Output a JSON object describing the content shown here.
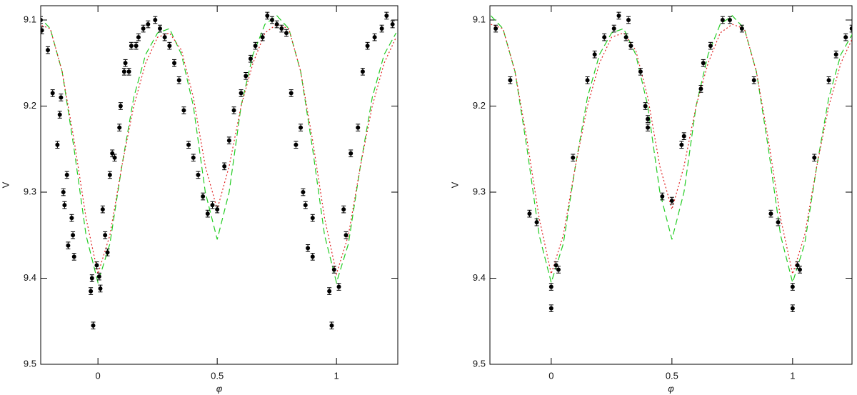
{
  "chart_data": [
    {
      "type": "scatter",
      "xlabel": "φ",
      "ylabel": "V",
      "xlim": [
        -0.24,
        1.257
      ],
      "ylim": [
        9.0834,
        9.5
      ],
      "y_inverted": true,
      "xticks": [
        0,
        0.5,
        1
      ],
      "yticks": [
        9.1,
        9.2,
        9.3,
        9.4,
        9.5
      ],
      "yerr": 0.004,
      "point_color": "#000000",
      "points": {
        "x": [
          -0.24,
          -0.235,
          -0.21,
          -0.19,
          -0.17,
          -0.16,
          -0.155,
          -0.145,
          -0.14,
          -0.13,
          -0.125,
          -0.11,
          -0.105,
          -0.1,
          -0.03,
          -0.025,
          -0.02,
          -0.005,
          0.005,
          0.01,
          0.02,
          0.03,
          0.04,
          0.05,
          0.06,
          0.07,
          0.09,
          0.095,
          0.11,
          0.115,
          0.13,
          0.14,
          0.16,
          0.17,
          0.19,
          0.21,
          0.24,
          0.26,
          0.28,
          0.3,
          0.32,
          0.34,
          0.36,
          0.38,
          0.4,
          0.42,
          0.44,
          0.46,
          0.48,
          0.5,
          0.53,
          0.55,
          0.57,
          0.6,
          0.62,
          0.64,
          0.66,
          0.69,
          0.71,
          0.73,
          0.75,
          0.77,
          0.79,
          0.81,
          0.83,
          0.85,
          0.86,
          0.87,
          0.88,
          0.9,
          0.9,
          0.97,
          0.98,
          0.99,
          1.01,
          1.03,
          1.04,
          1.06,
          1.09,
          1.11,
          1.13,
          1.16,
          1.19,
          1.21,
          1.235
        ],
        "y": [
          9.1,
          9.112,
          9.135,
          9.185,
          9.245,
          9.21,
          9.19,
          9.3,
          9.315,
          9.28,
          9.362,
          9.33,
          9.35,
          9.375,
          9.415,
          9.4,
          9.455,
          9.385,
          9.398,
          9.412,
          9.32,
          9.35,
          9.37,
          9.28,
          9.255,
          9.26,
          9.225,
          9.2,
          9.16,
          9.15,
          9.16,
          9.13,
          9.13,
          9.12,
          9.11,
          9.105,
          9.1,
          9.11,
          9.12,
          9.13,
          9.15,
          9.17,
          9.205,
          9.245,
          9.26,
          9.28,
          9.305,
          9.325,
          9.315,
          9.32,
          9.27,
          9.24,
          9.205,
          9.185,
          9.165,
          9.145,
          9.13,
          9.12,
          9.095,
          9.1,
          9.105,
          9.11,
          9.115,
          9.185,
          9.245,
          9.225,
          9.3,
          9.315,
          9.365,
          9.33,
          9.375,
          9.415,
          9.455,
          9.39,
          9.41,
          9.32,
          9.35,
          9.255,
          9.225,
          9.16,
          9.13,
          9.12,
          9.11,
          9.095,
          9.105
        ]
      },
      "curves": [
        {
          "color": "#22cc22",
          "style": "dashed",
          "x": [
            -0.25,
            -0.2,
            -0.15,
            -0.1,
            -0.05,
            0,
            0.05,
            0.1,
            0.15,
            0.2,
            0.25,
            0.3,
            0.35,
            0.4,
            0.45,
            0.5,
            0.55,
            0.6,
            0.65,
            0.7,
            0.75,
            0.8,
            0.85,
            0.9,
            0.95,
            1,
            1.05,
            1.1,
            1.15,
            1.2,
            1.25
          ],
          "y": [
            9.095,
            9.11,
            9.16,
            9.25,
            9.35,
            9.405,
            9.36,
            9.27,
            9.19,
            9.14,
            9.115,
            9.11,
            9.14,
            9.2,
            9.3,
            9.355,
            9.3,
            9.2,
            9.14,
            9.105,
            9.095,
            9.11,
            9.16,
            9.25,
            9.35,
            9.405,
            9.36,
            9.27,
            9.19,
            9.14,
            9.115
          ]
        },
        {
          "color": "#e02020",
          "style": "dotted",
          "x": [
            -0.25,
            -0.2,
            -0.15,
            -0.1,
            -0.05,
            0,
            0.05,
            0.1,
            0.15,
            0.2,
            0.25,
            0.3,
            0.35,
            0.4,
            0.45,
            0.5,
            0.55,
            0.6,
            0.65,
            0.7,
            0.75,
            0.8,
            0.85,
            0.9,
            0.95,
            1,
            1.05,
            1.1,
            1.15,
            1.2,
            1.25
          ],
          "y": [
            9.105,
            9.11,
            9.16,
            9.24,
            9.33,
            9.395,
            9.35,
            9.27,
            9.2,
            9.15,
            9.12,
            9.115,
            9.135,
            9.19,
            9.27,
            9.32,
            9.27,
            9.2,
            9.15,
            9.115,
            9.105,
            9.11,
            9.16,
            9.24,
            9.33,
            9.395,
            9.35,
            9.27,
            9.2,
            9.15,
            9.12
          ]
        }
      ]
    },
    {
      "type": "scatter",
      "xlabel": "φ",
      "ylabel": "V",
      "xlim": [
        -0.254,
        1.246
      ],
      "ylim": [
        9.0834,
        9.5
      ],
      "y_inverted": true,
      "xticks": [
        0,
        0.5,
        1
      ],
      "yticks": [
        9.1,
        9.2,
        9.3,
        9.4,
        9.5
      ],
      "yerr": 0.004,
      "point_color": "#000000",
      "points": {
        "x": [
          -0.23,
          -0.17,
          -0.09,
          -0.06,
          0,
          0,
          0.02,
          0.03,
          0.09,
          0.15,
          0.18,
          0.22,
          0.26,
          0.28,
          0.31,
          0.32,
          0.33,
          0.37,
          0.39,
          0.4,
          0.4,
          0.46,
          0.5,
          0.54,
          0.55,
          0.62,
          0.63,
          0.66,
          0.71,
          0.74,
          0.79,
          0.84,
          0.91,
          0.94,
          1,
          1,
          1.02,
          1.03,
          1.09,
          1.15,
          1.18,
          1.22,
          1.245
        ],
        "y": [
          9.11,
          9.17,
          9.325,
          9.335,
          9.41,
          9.435,
          9.385,
          9.39,
          9.26,
          9.17,
          9.14,
          9.12,
          9.11,
          9.095,
          9.12,
          9.1,
          9.13,
          9.16,
          9.2,
          9.215,
          9.225,
          9.305,
          9.31,
          9.245,
          9.235,
          9.18,
          9.15,
          9.13,
          9.1,
          9.1,
          9.11,
          9.17,
          9.325,
          9.335,
          9.41,
          9.435,
          9.385,
          9.39,
          9.26,
          9.17,
          9.14,
          9.12,
          9.11
        ]
      },
      "curves": [
        {
          "color": "#22cc22",
          "style": "dashed",
          "x": [
            -0.25,
            -0.2,
            -0.15,
            -0.1,
            -0.05,
            0,
            0.05,
            0.1,
            0.15,
            0.2,
            0.25,
            0.3,
            0.35,
            0.4,
            0.45,
            0.5,
            0.55,
            0.6,
            0.65,
            0.7,
            0.75,
            0.8,
            0.85,
            0.9,
            0.95,
            1,
            1.05,
            1.1,
            1.15,
            1.2,
            1.25
          ],
          "y": [
            9.095,
            9.11,
            9.16,
            9.25,
            9.35,
            9.405,
            9.36,
            9.27,
            9.19,
            9.14,
            9.115,
            9.11,
            9.14,
            9.2,
            9.3,
            9.355,
            9.3,
            9.2,
            9.14,
            9.105,
            9.095,
            9.11,
            9.16,
            9.25,
            9.35,
            9.405,
            9.36,
            9.27,
            9.19,
            9.14,
            9.115
          ]
        },
        {
          "color": "#e02020",
          "style": "dotted",
          "x": [
            -0.25,
            -0.2,
            -0.15,
            -0.1,
            -0.05,
            0,
            0.05,
            0.1,
            0.15,
            0.2,
            0.25,
            0.3,
            0.35,
            0.4,
            0.45,
            0.5,
            0.55,
            0.6,
            0.65,
            0.7,
            0.75,
            0.8,
            0.85,
            0.9,
            0.95,
            1,
            1.05,
            1.1,
            1.15,
            1.2,
            1.25
          ],
          "y": [
            9.105,
            9.11,
            9.16,
            9.24,
            9.33,
            9.395,
            9.35,
            9.27,
            9.2,
            9.15,
            9.12,
            9.115,
            9.135,
            9.19,
            9.27,
            9.32,
            9.27,
            9.2,
            9.15,
            9.115,
            9.105,
            9.11,
            9.16,
            9.24,
            9.33,
            9.395,
            9.35,
            9.27,
            9.2,
            9.15,
            9.12
          ]
        }
      ]
    }
  ]
}
